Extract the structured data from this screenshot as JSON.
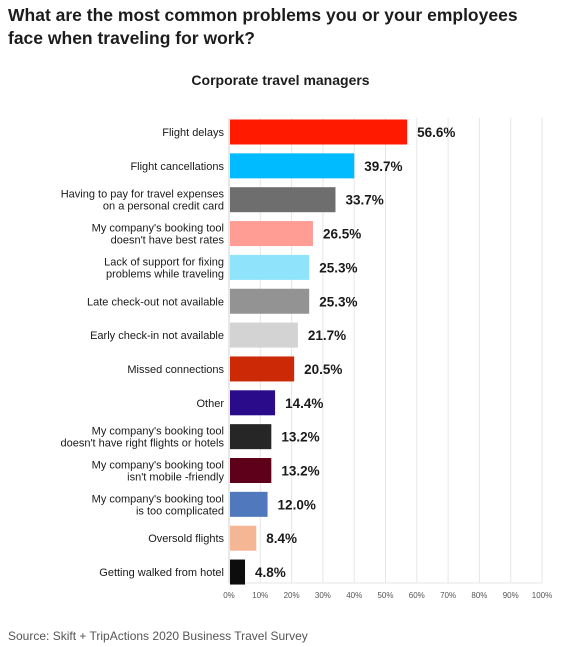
{
  "header": {
    "title": "What are the most common problems you or your employees face when traveling for work?",
    "subtitle": "Corporate travel managers"
  },
  "footer": {
    "source": "Source: Skift + TripActions 2020 Business Travel Survey"
  },
  "chart_data": {
    "type": "bar",
    "orientation": "horizontal",
    "title": "Corporate travel managers",
    "categories": [
      [
        "Flight delays"
      ],
      [
        "Flight cancellations"
      ],
      [
        "Having to pay for travel expenses",
        "on a personal credit card"
      ],
      [
        "My company's booking tool",
        "doesn't have best rates"
      ],
      [
        "Lack of support for fixing",
        "problems while traveling"
      ],
      [
        "Late check-out not available"
      ],
      [
        "Early check-in not available"
      ],
      [
        "Missed connections"
      ],
      [
        "Other"
      ],
      [
        "My company's booking tool",
        "doesn't have right flights or hotels"
      ],
      [
        "My company's booking tool",
        "isn't mobile -friendly"
      ],
      [
        "My company's booking tool",
        "is too complicated"
      ],
      [
        "Oversold flights"
      ],
      [
        "Getting walked from hotel"
      ]
    ],
    "values": [
      56.6,
      39.7,
      33.7,
      26.5,
      25.3,
      25.3,
      21.7,
      20.5,
      14.4,
      13.2,
      13.2,
      12.0,
      8.4,
      4.8
    ],
    "value_labels": [
      "56.6%",
      "39.7%",
      "33.7%",
      "26.5%",
      "25.3%",
      "25.3%",
      "21.7%",
      "20.5%",
      "14.4%",
      "13.2%",
      "13.2%",
      "12.0%",
      "8.4%",
      "4.8%"
    ],
    "colors": [
      "#ff1a00",
      "#00bbff",
      "#6e6e6e",
      "#ff9c94",
      "#8fe3fb",
      "#939393",
      "#d3d3d3",
      "#cc2a06",
      "#2a0b8a",
      "#262626",
      "#5e0019",
      "#4f79bc",
      "#f5b696",
      "#0d0d0d"
    ],
    "xlim": [
      0,
      100
    ],
    "xticks": [
      0,
      10,
      20,
      30,
      40,
      50,
      60,
      70,
      80,
      90,
      100
    ],
    "xtick_labels": [
      "0%",
      "10%",
      "20%",
      "30%",
      "40%",
      "50%",
      "60%",
      "70%",
      "80%",
      "90%",
      "100%"
    ],
    "grid": true,
    "legend": "none"
  }
}
